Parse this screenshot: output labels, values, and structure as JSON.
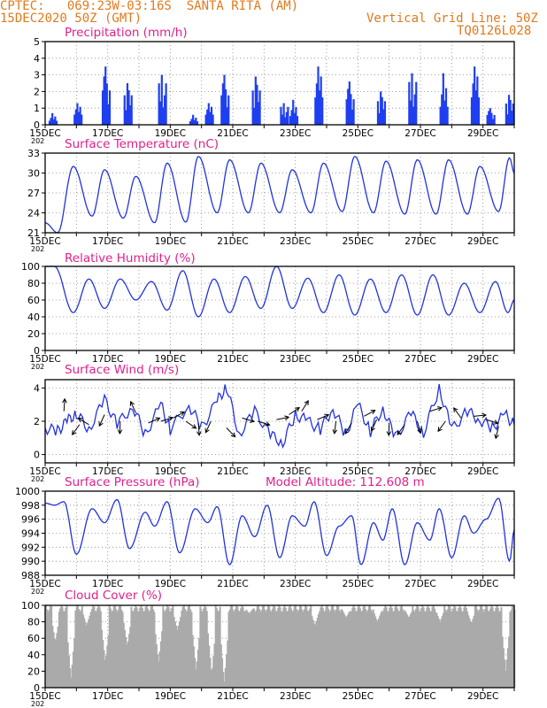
{
  "header": {
    "line1": "CPTEC:   069:23W-03:16S  SANTA RITA (AM)",
    "line2": "15DEC2020 50Z (GMT)",
    "right1": "Vertical Grid Line: 50Z",
    "right2": "TQ0126L028"
  },
  "colors": {
    "header": "#e07a1e",
    "title": "#e0208c",
    "line": "#2233dd",
    "bar": "#1f3ff0",
    "cloud": "#aaaaaa",
    "arrow": "#000000"
  },
  "x_axis": {
    "labels": [
      "15DEC",
      "17DEC",
      "19DEC",
      "21DEC",
      "23DEC",
      "25DEC",
      "27DEC",
      "29DEC"
    ],
    "year_label": "202"
  },
  "chart_data": [
    {
      "id": "precip",
      "type": "bar",
      "title": "Precipitation  (mm/h)",
      "ylim": [
        0,
        5
      ],
      "yticks": [
        "0",
        "1",
        "2",
        "3",
        "4",
        "5"
      ],
      "grid": true,
      "x_start": "15DEC2020",
      "x_end": "30DEC2020",
      "events": [
        {
          "day": 15.2,
          "value": 0.7
        },
        {
          "day": 16.0,
          "value": 1.3
        },
        {
          "day": 16.9,
          "value": 3.5
        },
        {
          "day": 17.6,
          "value": 2.5
        },
        {
          "day": 18.7,
          "value": 3.0
        },
        {
          "day": 19.7,
          "value": 0.6
        },
        {
          "day": 20.2,
          "value": 1.3
        },
        {
          "day": 20.7,
          "value": 3.0
        },
        {
          "day": 21.7,
          "value": 2.9
        },
        {
          "day": 22.6,
          "value": 1.3
        },
        {
          "day": 22.9,
          "value": 1.5
        },
        {
          "day": 23.7,
          "value": 3.5
        },
        {
          "day": 24.7,
          "value": 2.6
        },
        {
          "day": 25.7,
          "value": 2.0
        },
        {
          "day": 26.7,
          "value": 3.1
        },
        {
          "day": 27.7,
          "value": 3.1
        },
        {
          "day": 28.7,
          "value": 3.5
        },
        {
          "day": 29.2,
          "value": 1.0
        },
        {
          "day": 29.8,
          "value": 1.8
        }
      ]
    },
    {
      "id": "temp",
      "type": "line",
      "title": "Surface Temperature  (nC)",
      "ylim": [
        21,
        33
      ],
      "yticks": [
        "21",
        "24",
        "27",
        "30",
        "33"
      ],
      "grid": true,
      "peaks": [
        {
          "day": 15.0,
          "value": 22.5
        },
        {
          "day": 15.4,
          "value": 21.0
        },
        {
          "day": 15.9,
          "value": 31.0
        },
        {
          "day": 16.5,
          "value": 23.5
        },
        {
          "day": 16.9,
          "value": 30.5
        },
        {
          "day": 17.5,
          "value": 23.2
        },
        {
          "day": 17.9,
          "value": 29.5
        },
        {
          "day": 18.5,
          "value": 22.5
        },
        {
          "day": 18.9,
          "value": 31.5
        },
        {
          "day": 19.5,
          "value": 22.6
        },
        {
          "day": 19.9,
          "value": 32.5
        },
        {
          "day": 20.5,
          "value": 24.0
        },
        {
          "day": 20.9,
          "value": 32.0
        },
        {
          "day": 21.5,
          "value": 24.0
        },
        {
          "day": 21.9,
          "value": 31.5
        },
        {
          "day": 22.5,
          "value": 24.0
        },
        {
          "day": 22.9,
          "value": 30.5
        },
        {
          "day": 23.5,
          "value": 24.0
        },
        {
          "day": 23.9,
          "value": 31.5
        },
        {
          "day": 24.5,
          "value": 24.2
        },
        {
          "day": 24.9,
          "value": 32.5
        },
        {
          "day": 25.5,
          "value": 24.0
        },
        {
          "day": 25.9,
          "value": 31.8
        },
        {
          "day": 26.5,
          "value": 23.8
        },
        {
          "day": 26.9,
          "value": 32.0
        },
        {
          "day": 27.5,
          "value": 23.8
        },
        {
          "day": 27.9,
          "value": 32.0
        },
        {
          "day": 28.5,
          "value": 23.8
        },
        {
          "day": 28.9,
          "value": 31.0
        },
        {
          "day": 29.5,
          "value": 24.2
        },
        {
          "day": 29.85,
          "value": 32.3
        },
        {
          "day": 30.0,
          "value": 30.0
        }
      ]
    },
    {
      "id": "rh",
      "type": "line",
      "title": "Relative Humidity  (%)",
      "ylim": [
        0,
        100
      ],
      "yticks": [
        "0",
        "20",
        "40",
        "60",
        "80",
        "100"
      ],
      "grid": true,
      "peaks": [
        {
          "day": 15.0,
          "value": 100
        },
        {
          "day": 15.3,
          "value": 100
        },
        {
          "day": 15.9,
          "value": 45
        },
        {
          "day": 16.4,
          "value": 85
        },
        {
          "day": 16.9,
          "value": 50
        },
        {
          "day": 17.4,
          "value": 85
        },
        {
          "day": 17.9,
          "value": 60
        },
        {
          "day": 18.4,
          "value": 82
        },
        {
          "day": 18.9,
          "value": 48
        },
        {
          "day": 19.4,
          "value": 95
        },
        {
          "day": 19.9,
          "value": 40
        },
        {
          "day": 20.4,
          "value": 85
        },
        {
          "day": 20.9,
          "value": 45
        },
        {
          "day": 21.4,
          "value": 88
        },
        {
          "day": 21.9,
          "value": 50
        },
        {
          "day": 22.4,
          "value": 100
        },
        {
          "day": 22.9,
          "value": 50
        },
        {
          "day": 23.4,
          "value": 86
        },
        {
          "day": 23.9,
          "value": 45
        },
        {
          "day": 24.4,
          "value": 90
        },
        {
          "day": 24.9,
          "value": 42
        },
        {
          "day": 25.4,
          "value": 85
        },
        {
          "day": 25.9,
          "value": 45
        },
        {
          "day": 26.4,
          "value": 90
        },
        {
          "day": 26.9,
          "value": 42
        },
        {
          "day": 27.4,
          "value": 90
        },
        {
          "day": 27.9,
          "value": 42
        },
        {
          "day": 28.4,
          "value": 80
        },
        {
          "day": 28.9,
          "value": 45
        },
        {
          "day": 29.4,
          "value": 82
        },
        {
          "day": 29.8,
          "value": 45
        },
        {
          "day": 30.0,
          "value": 60
        }
      ]
    },
    {
      "id": "wind",
      "type": "line",
      "title": "Surface Wind  (m/s)",
      "ylim": [
        -0.5,
        4.5
      ],
      "yticks": [
        "0",
        "2",
        "4"
      ],
      "grid": true,
      "series": [
        {
          "day": 15.0,
          "value": 1.6
        },
        {
          "day": 15.4,
          "value": 1.4
        },
        {
          "day": 15.7,
          "value": 2.0
        },
        {
          "day": 16.0,
          "value": 2.5
        },
        {
          "day": 16.4,
          "value": 1.5
        },
        {
          "day": 16.9,
          "value": 3.3
        },
        {
          "day": 17.3,
          "value": 1.8
        },
        {
          "day": 17.8,
          "value": 2.9
        },
        {
          "day": 18.2,
          "value": 1.2
        },
        {
          "day": 18.7,
          "value": 3.0
        },
        {
          "day": 19.0,
          "value": 1.5
        },
        {
          "day": 19.6,
          "value": 3.0
        },
        {
          "day": 20.0,
          "value": 1.6
        },
        {
          "day": 20.5,
          "value": 3.2
        },
        {
          "day": 20.8,
          "value": 4.1
        },
        {
          "day": 21.2,
          "value": 1.2
        },
        {
          "day": 21.7,
          "value": 2.6
        },
        {
          "day": 22.2,
          "value": 1.2
        },
        {
          "day": 22.6,
          "value": 0.7
        },
        {
          "day": 23.0,
          "value": 2.4
        },
        {
          "day": 23.4,
          "value": 2.0
        },
        {
          "day": 23.8,
          "value": 1.5
        },
        {
          "day": 24.2,
          "value": 2.8
        },
        {
          "day": 24.6,
          "value": 1.2
        },
        {
          "day": 25.0,
          "value": 3.0
        },
        {
          "day": 25.4,
          "value": 1.4
        },
        {
          "day": 25.8,
          "value": 2.8
        },
        {
          "day": 26.2,
          "value": 1.0
        },
        {
          "day": 26.7,
          "value": 2.5
        },
        {
          "day": 27.1,
          "value": 1.3
        },
        {
          "day": 27.6,
          "value": 4.0
        },
        {
          "day": 28.0,
          "value": 1.5
        },
        {
          "day": 28.5,
          "value": 2.6
        },
        {
          "day": 28.9,
          "value": 2.1
        },
        {
          "day": 29.3,
          "value": 1.6
        },
        {
          "day": 29.7,
          "value": 2.4
        },
        {
          "day": 30.0,
          "value": 1.8
        }
      ],
      "arrows": [
        {
          "day": 15.6,
          "speed": 2.6,
          "dir": 1.5
        },
        {
          "day": 16.1,
          "speed": 1.8,
          "dir": -2.2
        },
        {
          "day": 16.4,
          "speed": 1.8,
          "dir": 2.6
        },
        {
          "day": 16.9,
          "speed": 2.4,
          "dir": -2.0
        },
        {
          "day": 17.4,
          "speed": 2.0,
          "dir": -1.6
        },
        {
          "day": 17.9,
          "speed": 2.5,
          "dir": 2.0
        },
        {
          "day": 18.3,
          "speed": 1.9,
          "dir": 0.4
        },
        {
          "day": 18.7,
          "speed": 2.0,
          "dir": 0.3
        },
        {
          "day": 19.1,
          "speed": 2.2,
          "dir": 0.5
        },
        {
          "day": 19.5,
          "speed": 2.0,
          "dir": -0.6
        },
        {
          "day": 19.9,
          "speed": 1.9,
          "dir": -1.5
        },
        {
          "day": 20.3,
          "speed": 2.0,
          "dir": -2.0
        },
        {
          "day": 20.8,
          "speed": 1.6,
          "dir": -0.8
        },
        {
          "day": 21.3,
          "speed": 2.2,
          "dir": -0.3
        },
        {
          "day": 21.8,
          "speed": 2.0,
          "dir": -0.3
        },
        {
          "day": 22.4,
          "speed": 2.1,
          "dir": 0.2
        },
        {
          "day": 22.8,
          "speed": 2.4,
          "dir": 0.6
        },
        {
          "day": 23.2,
          "speed": 2.6,
          "dir": 1.0
        },
        {
          "day": 23.7,
          "speed": 2.1,
          "dir": 0.4
        },
        {
          "day": 24.3,
          "speed": 2.0,
          "dir": -1.7
        },
        {
          "day": 24.8,
          "speed": 1.9,
          "dir": -2.1
        },
        {
          "day": 25.2,
          "speed": 2.3,
          "dir": 0.5
        },
        {
          "day": 25.6,
          "speed": 2.1,
          "dir": -2.0
        },
        {
          "day": 26.0,
          "speed": 1.9,
          "dir": -1.6
        },
        {
          "day": 26.5,
          "speed": 1.8,
          "dir": -2.2
        },
        {
          "day": 26.9,
          "speed": 2.0,
          "dir": -1.3
        },
        {
          "day": 27.3,
          "speed": 2.6,
          "dir": 0.3
        },
        {
          "day": 27.8,
          "speed": 2.0,
          "dir": -2.2
        },
        {
          "day": 28.3,
          "speed": 2.2,
          "dir": 2.2
        },
        {
          "day": 28.7,
          "speed": 2.3,
          "dir": 0.1
        },
        {
          "day": 29.1,
          "speed": 2.1,
          "dir": -0.3
        },
        {
          "day": 29.5,
          "speed": 1.7,
          "dir": -1.8
        }
      ]
    },
    {
      "id": "pressure",
      "type": "line",
      "title": "Surface Pressure  (hPa)",
      "subtitle": "Model Altitude: 112.608  m",
      "ylim": [
        988,
        1000
      ],
      "yticks": [
        "988",
        "990",
        "992",
        "994",
        "996",
        "998",
        "1000"
      ],
      "grid": true,
      "peaks": [
        {
          "day": 15.0,
          "value": 998.3
        },
        {
          "day": 15.3,
          "value": 998.0
        },
        {
          "day": 15.6,
          "value": 998.5
        },
        {
          "day": 16.0,
          "value": 991.0
        },
        {
          "day": 16.5,
          "value": 997.5
        },
        {
          "day": 16.9,
          "value": 995.5
        },
        {
          "day": 17.3,
          "value": 998.8
        },
        {
          "day": 17.7,
          "value": 991.8
        },
        {
          "day": 18.2,
          "value": 997.0
        },
        {
          "day": 18.5,
          "value": 995.0
        },
        {
          "day": 18.9,
          "value": 998.5
        },
        {
          "day": 19.3,
          "value": 991.2
        },
        {
          "day": 19.8,
          "value": 997.5
        },
        {
          "day": 20.2,
          "value": 995.5
        },
        {
          "day": 20.5,
          "value": 997.8
        },
        {
          "day": 20.9,
          "value": 989.5
        },
        {
          "day": 21.3,
          "value": 996.5
        },
        {
          "day": 21.7,
          "value": 993.5
        },
        {
          "day": 22.1,
          "value": 998.0
        },
        {
          "day": 22.5,
          "value": 990.5
        },
        {
          "day": 22.9,
          "value": 996.5
        },
        {
          "day": 23.3,
          "value": 995.0
        },
        {
          "day": 23.6,
          "value": 998.5
        },
        {
          "day": 24.0,
          "value": 990.8
        },
        {
          "day": 24.4,
          "value": 995.0
        },
        {
          "day": 24.8,
          "value": 996.5
        },
        {
          "day": 25.1,
          "value": 989.5
        },
        {
          "day": 25.5,
          "value": 995.5
        },
        {
          "day": 25.8,
          "value": 993.0
        },
        {
          "day": 26.1,
          "value": 997.5
        },
        {
          "day": 26.5,
          "value": 989.5
        },
        {
          "day": 26.9,
          "value": 995.5
        },
        {
          "day": 27.3,
          "value": 993.0
        },
        {
          "day": 27.6,
          "value": 997.5
        },
        {
          "day": 28.0,
          "value": 990.5
        },
        {
          "day": 28.4,
          "value": 996.5
        },
        {
          "day": 28.7,
          "value": 994.0
        },
        {
          "day": 29.1,
          "value": 996.0
        },
        {
          "day": 29.5,
          "value": 999.0
        },
        {
          "day": 29.85,
          "value": 990.0
        },
        {
          "day": 30.0,
          "value": 994.5
        }
      ]
    },
    {
      "id": "cloud",
      "type": "area",
      "title": "Cloud Cover  (%)",
      "ylim": [
        0,
        100
      ],
      "yticks": [
        "0",
        "20",
        "40",
        "60",
        "80",
        "100"
      ],
      "grid": true,
      "dips": [
        {
          "day": 15.3,
          "value": 55
        },
        {
          "day": 15.8,
          "value": 10
        },
        {
          "day": 16.3,
          "value": 75
        },
        {
          "day": 16.9,
          "value": 30
        },
        {
          "day": 17.6,
          "value": 50
        },
        {
          "day": 18.6,
          "value": 30
        },
        {
          "day": 19.2,
          "value": 70
        },
        {
          "day": 19.8,
          "value": 20
        },
        {
          "day": 20.3,
          "value": 15
        },
        {
          "day": 20.7,
          "value": 5
        },
        {
          "day": 21.5,
          "value": 90
        },
        {
          "day": 23.6,
          "value": 75
        },
        {
          "day": 24.6,
          "value": 85
        },
        {
          "day": 25.6,
          "value": 80
        },
        {
          "day": 26.6,
          "value": 85
        },
        {
          "day": 27.6,
          "value": 80
        },
        {
          "day": 28.6,
          "value": 78
        },
        {
          "day": 29.7,
          "value": 20
        }
      ]
    }
  ]
}
